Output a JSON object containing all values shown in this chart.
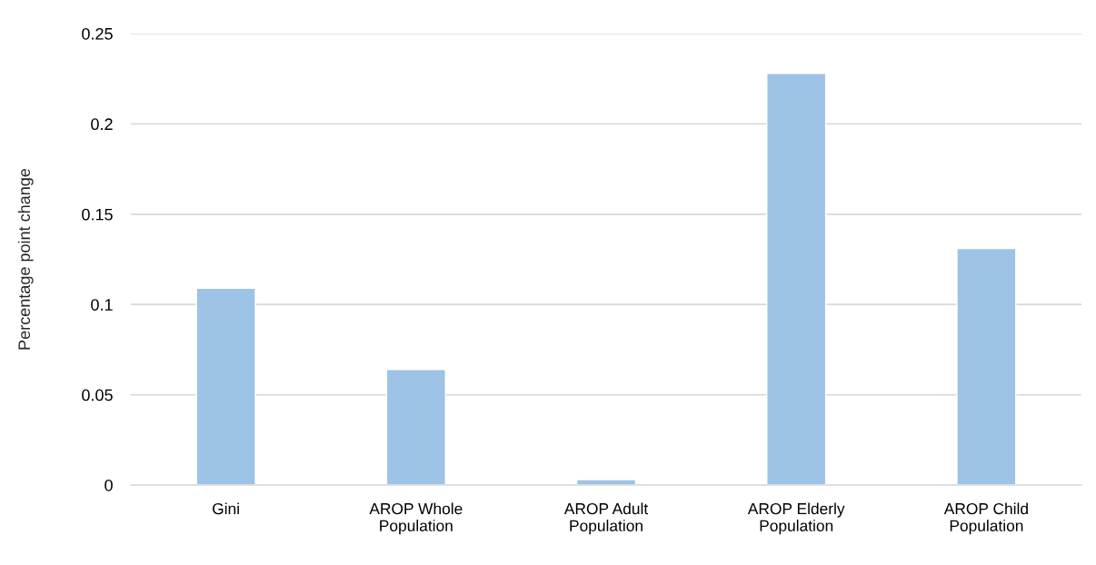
{
  "chart_data": {
    "type": "bar",
    "ylabel": "Percentage point change",
    "categories": [
      "Gini",
      "AROP Whole Population",
      "AROP Adult Population",
      "AROP Elderly Population",
      "AROP Child Population"
    ],
    "values": [
      0.109,
      0.064,
      0.003,
      0.228,
      0.131
    ],
    "color": "#9dc3e6",
    "ylim": [
      0,
      0.25
    ],
    "yticks": [
      0,
      0.05,
      0.1,
      0.15,
      0.2,
      0.25
    ],
    "grid": "y",
    "legend": false
  }
}
